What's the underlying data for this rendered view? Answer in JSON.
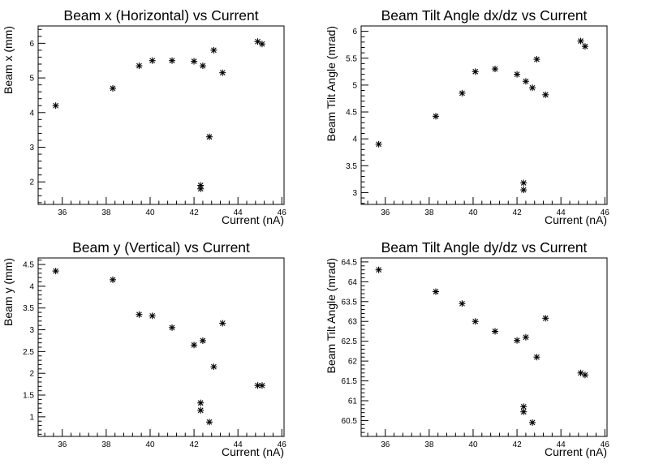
{
  "chart_data": [
    {
      "type": "scatter",
      "title": "Beam x (Horizontal) vs Current",
      "xlabel": "Current (nA)",
      "ylabel": "Beam x (mm)",
      "xlim": [
        34.9,
        46.1
      ],
      "ylim": [
        1.35,
        6.5
      ],
      "xticks": [
        "36",
        "38",
        "40",
        "42",
        "44",
        "46"
      ],
      "yticks": [
        "2",
        "3",
        "4",
        "5",
        "6"
      ],
      "points": [
        {
          "x": 35.7,
          "y": 4.2
        },
        {
          "x": 38.3,
          "y": 4.7
        },
        {
          "x": 39.5,
          "y": 5.35
        },
        {
          "x": 40.1,
          "y": 5.5
        },
        {
          "x": 41.0,
          "y": 5.5
        },
        {
          "x": 42.0,
          "y": 5.48
        },
        {
          "x": 42.4,
          "y": 5.35
        },
        {
          "x": 42.9,
          "y": 5.8
        },
        {
          "x": 43.3,
          "y": 5.15
        },
        {
          "x": 44.9,
          "y": 6.05
        },
        {
          "x": 45.1,
          "y": 5.98
        },
        {
          "x": 42.7,
          "y": 3.3
        },
        {
          "x": 42.3,
          "y": 1.9
        },
        {
          "x": 42.3,
          "y": 1.8
        }
      ]
    },
    {
      "type": "scatter",
      "title": "Beam Tilt Angle dx/dz vs Current",
      "xlabel": "Current (nA)",
      "ylabel": "Beam Tilt Angle (mrad)",
      "xlim": [
        34.9,
        46.1
      ],
      "ylim": [
        2.78,
        6.1
      ],
      "xticks": [
        "36",
        "38",
        "40",
        "42",
        "44",
        "46"
      ],
      "yticks": [
        "3",
        "3.5",
        "4",
        "4.5",
        "5",
        "5.5",
        "6"
      ],
      "points": [
        {
          "x": 35.7,
          "y": 3.9
        },
        {
          "x": 38.3,
          "y": 4.42
        },
        {
          "x": 39.5,
          "y": 4.85
        },
        {
          "x": 40.1,
          "y": 5.25
        },
        {
          "x": 41.0,
          "y": 5.3
        },
        {
          "x": 42.0,
          "y": 5.2
        },
        {
          "x": 42.4,
          "y": 5.07
        },
        {
          "x": 42.7,
          "y": 4.95
        },
        {
          "x": 42.9,
          "y": 5.48
        },
        {
          "x": 43.3,
          "y": 4.82
        },
        {
          "x": 44.9,
          "y": 5.82
        },
        {
          "x": 45.1,
          "y": 5.72
        },
        {
          "x": 42.3,
          "y": 3.18
        },
        {
          "x": 42.3,
          "y": 3.05
        }
      ]
    },
    {
      "type": "scatter",
      "title": "Beam y (Vertical) vs Current",
      "xlabel": "Current (nA)",
      "ylabel": "Beam y (mm)",
      "xlim": [
        34.9,
        46.1
      ],
      "ylim": [
        0.55,
        4.65
      ],
      "xticks": [
        "36",
        "38",
        "40",
        "42",
        "44",
        "46"
      ],
      "yticks": [
        "1",
        "1.5",
        "2",
        "2.5",
        "3",
        "3.5",
        "4",
        "4.5"
      ],
      "points": [
        {
          "x": 35.7,
          "y": 4.35
        },
        {
          "x": 38.3,
          "y": 4.15
        },
        {
          "x": 39.5,
          "y": 3.35
        },
        {
          "x": 40.1,
          "y": 3.32
        },
        {
          "x": 41.0,
          "y": 3.05
        },
        {
          "x": 42.0,
          "y": 2.65
        },
        {
          "x": 42.4,
          "y": 2.75
        },
        {
          "x": 42.9,
          "y": 2.15
        },
        {
          "x": 43.3,
          "y": 3.15
        },
        {
          "x": 44.9,
          "y": 1.72
        },
        {
          "x": 45.1,
          "y": 1.72
        },
        {
          "x": 42.3,
          "y": 1.32
        },
        {
          "x": 42.3,
          "y": 1.15
        },
        {
          "x": 42.7,
          "y": 0.88
        }
      ]
    },
    {
      "type": "scatter",
      "title": "Beam Tilt Angle dy/dz vs Current",
      "xlabel": "Current (nA)",
      "ylabel": "Beam Tilt Angle (mrad)",
      "xlim": [
        34.9,
        46.1
      ],
      "ylim": [
        60.1,
        64.6
      ],
      "xticks": [
        "36",
        "38",
        "40",
        "42",
        "44",
        "46"
      ],
      "yticks": [
        "60.5",
        "61",
        "61.5",
        "62",
        "62.5",
        "63",
        "63.5",
        "64",
        "64.5"
      ],
      "points": [
        {
          "x": 35.7,
          "y": 64.3
        },
        {
          "x": 38.3,
          "y": 63.75
        },
        {
          "x": 39.5,
          "y": 63.45
        },
        {
          "x": 40.1,
          "y": 63.0
        },
        {
          "x": 41.0,
          "y": 62.75
        },
        {
          "x": 42.0,
          "y": 62.52
        },
        {
          "x": 42.4,
          "y": 62.6
        },
        {
          "x": 42.9,
          "y": 62.1
        },
        {
          "x": 43.3,
          "y": 63.08
        },
        {
          "x": 44.9,
          "y": 61.7
        },
        {
          "x": 45.1,
          "y": 61.65
        },
        {
          "x": 42.3,
          "y": 60.85
        },
        {
          "x": 42.3,
          "y": 60.72
        },
        {
          "x": 42.7,
          "y": 60.45
        }
      ]
    }
  ]
}
